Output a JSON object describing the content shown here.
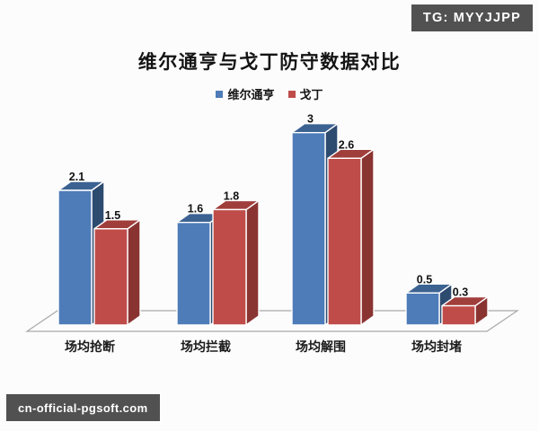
{
  "watermarks": {
    "top_right": "TG: MYYJJPP",
    "bottom_left": "cn-official-pgsoft.com",
    "badge_bg": "#515151",
    "badge_text_color": "#ffffff"
  },
  "chart_data": {
    "type": "bar",
    "style": "3d-clustered-column",
    "title": "维尔通亨与戈丁防守数据对比",
    "categories": [
      "场均抢断",
      "场均拦截",
      "场均解围",
      "场均封堵"
    ],
    "series": [
      {
        "name": "维尔通亨",
        "values": [
          2.1,
          1.6,
          3,
          0.5
        ],
        "data_labels": [
          "2.1",
          "1.6",
          "3",
          "0.5"
        ],
        "color_front": "#4e7cb8",
        "color_top": "#3c6292",
        "color_side": "#2d4a6f"
      },
      {
        "name": "戈丁",
        "values": [
          1.5,
          1.8,
          2.6,
          0.3
        ],
        "data_labels": [
          "1.5",
          "1.8",
          "2.6",
          "0.3"
        ],
        "color_front": "#bf4c49",
        "color_top": "#a03e3b",
        "color_side": "#8a3432"
      }
    ],
    "ylim": [
      0,
      3
    ],
    "grid": false,
    "y_axis_visible": false,
    "legend_position": "top",
    "floor_color": "#a8a8a8",
    "edge_color": "#ffffff",
    "label_color": "#111111",
    "category_label_color": "#1a1a1a"
  }
}
